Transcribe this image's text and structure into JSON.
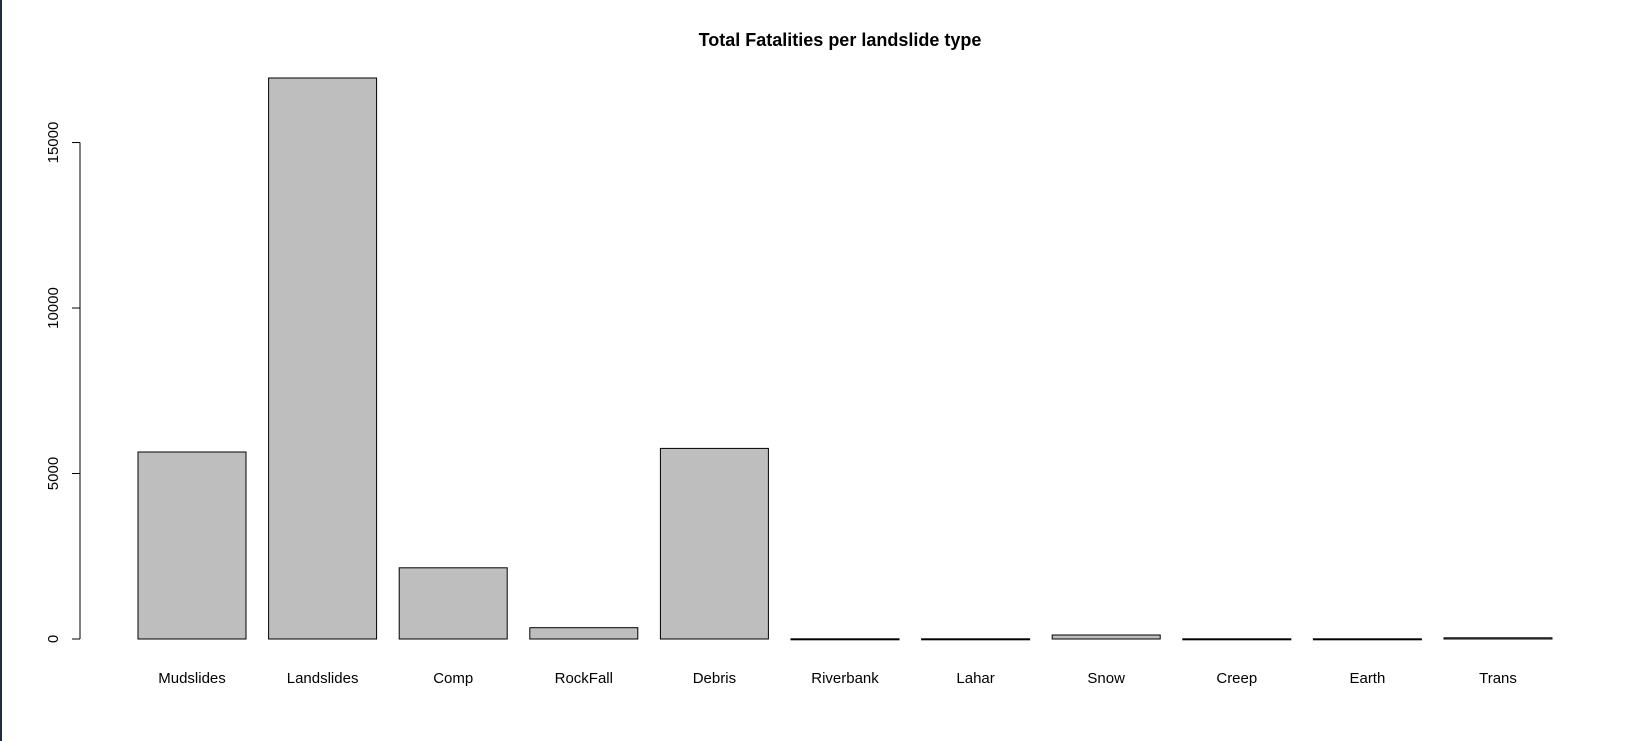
{
  "chart_data": {
    "type": "bar",
    "title": "Total Fatalities per landslide type",
    "xlabel": "",
    "ylabel": "",
    "categories": [
      "Mudslides",
      "Landslides",
      "Comp",
      "RockFall",
      "Debris",
      "Riverbank",
      "Lahar",
      "Snow",
      "Creep",
      "Earth",
      "Trans"
    ],
    "values": [
      5650,
      16950,
      2150,
      340,
      5760,
      5,
      5,
      120,
      5,
      5,
      35
    ],
    "ylim": [
      0,
      16950
    ],
    "yticks": [
      0,
      5000,
      10000,
      15000
    ],
    "ytick_labels": [
      "0",
      "5000",
      "10000",
      "15000"
    ],
    "grid": false,
    "legend": "none",
    "bar_color": "#bebebe",
    "edge_color": "#000000"
  }
}
